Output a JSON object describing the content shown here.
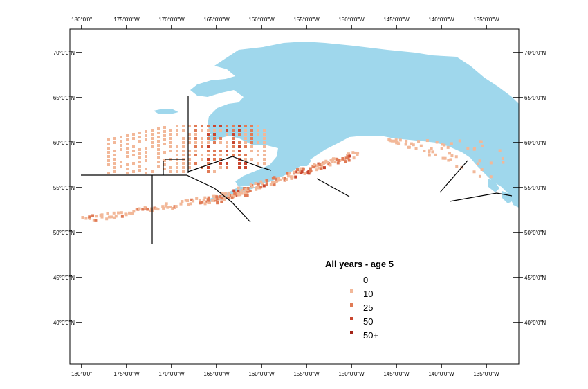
{
  "map": {
    "land_color": "#9fd7ec",
    "frame_color": "#000000"
  },
  "axes": {
    "top_labels": [
      "180°0'0\"",
      "175°0'0\"W",
      "170°0'0\"W",
      "165°0'0\"W",
      "160°0'0\"W",
      "155°0'0\"W",
      "150°0'0\"W",
      "145°0'0\"W",
      "140°0'0\"W",
      "135°0'0\"W"
    ],
    "bottom_labels": [
      "180°0'0\"",
      "175°0'0\"W",
      "170°0'0\"W",
      "165°0'0\"W",
      "160°0'0\"W",
      "155°0'0\"W",
      "150°0'0\"W",
      "145°0'0\"W",
      "140°0'0\"W",
      "135°0'0\"W"
    ],
    "lon_values": [
      -180,
      -175,
      -170,
      -165,
      -160,
      -155,
      -150,
      -145,
      -140,
      -135
    ],
    "left_labels": [
      "70°0'0\"N",
      "65°0'0\"N",
      "60°0'0\"N",
      "55°0'0\"N",
      "50°0'0\"N",
      "45°0'0\"N",
      "40°0'0\"N"
    ],
    "right_labels": [
      "70°0'0\"N",
      "65°0'0\"N",
      "60°0'0\"N",
      "55°0'0\"N",
      "50°0'0\"N",
      "45°0'0\"N",
      "40°0'0\"N"
    ],
    "lat_values": [
      70,
      65,
      60,
      55,
      50,
      45,
      40
    ]
  },
  "legend": {
    "title": "All years - age 5",
    "items": [
      {
        "label": "0",
        "color": "#ffffff"
      },
      {
        "label": "10",
        "color": "#f2b899"
      },
      {
        "label": "25",
        "color": "#e07b56"
      },
      {
        "label": "50",
        "color": "#c9462f"
      },
      {
        "label": "50+",
        "color": "#a32418"
      }
    ]
  }
}
